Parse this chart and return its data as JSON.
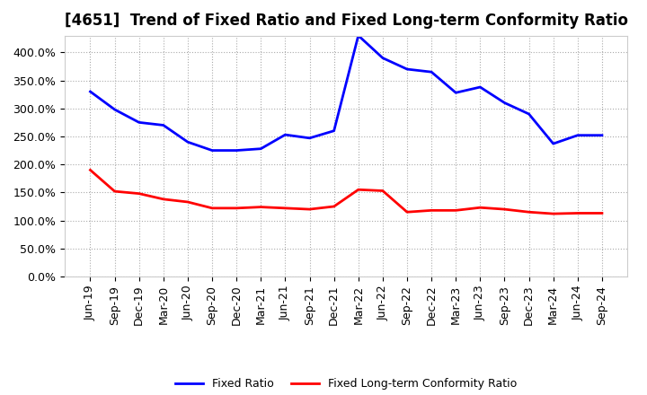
{
  "title": "[4651]  Trend of Fixed Ratio and Fixed Long-term Conformity Ratio",
  "x_labels": [
    "Jun-19",
    "Sep-19",
    "Dec-19",
    "Mar-20",
    "Jun-20",
    "Sep-20",
    "Dec-20",
    "Mar-21",
    "Jun-21",
    "Sep-21",
    "Dec-21",
    "Mar-22",
    "Jun-22",
    "Sep-22",
    "Dec-22",
    "Mar-23",
    "Jun-23",
    "Sep-23",
    "Dec-23",
    "Mar-24",
    "Jun-24",
    "Sep-24"
  ],
  "fixed_ratio": [
    330,
    298,
    275,
    270,
    240,
    225,
    225,
    228,
    253,
    247,
    260,
    430,
    390,
    370,
    365,
    328,
    338,
    310,
    290,
    237,
    252,
    252
  ],
  "fixed_lt_ratio": [
    190,
    152,
    148,
    138,
    133,
    122,
    122,
    124,
    122,
    120,
    125,
    155,
    153,
    115,
    118,
    118,
    123,
    120,
    115,
    112,
    113,
    113
  ],
  "fixed_ratio_color": "#0000FF",
  "fixed_lt_ratio_color": "#FF0000",
  "ylim": [
    0,
    430
  ],
  "yticks": [
    0,
    50,
    100,
    150,
    200,
    250,
    300,
    350,
    400
  ],
  "background_color": "#FFFFFF",
  "plot_bg_color": "#FFFFFF",
  "grid_color": "#AAAAAA",
  "legend_fixed_ratio": "Fixed Ratio",
  "legend_fixed_lt_ratio": "Fixed Long-term Conformity Ratio",
  "title_fontsize": 12,
  "tick_fontsize": 9,
  "linewidth": 2.0
}
